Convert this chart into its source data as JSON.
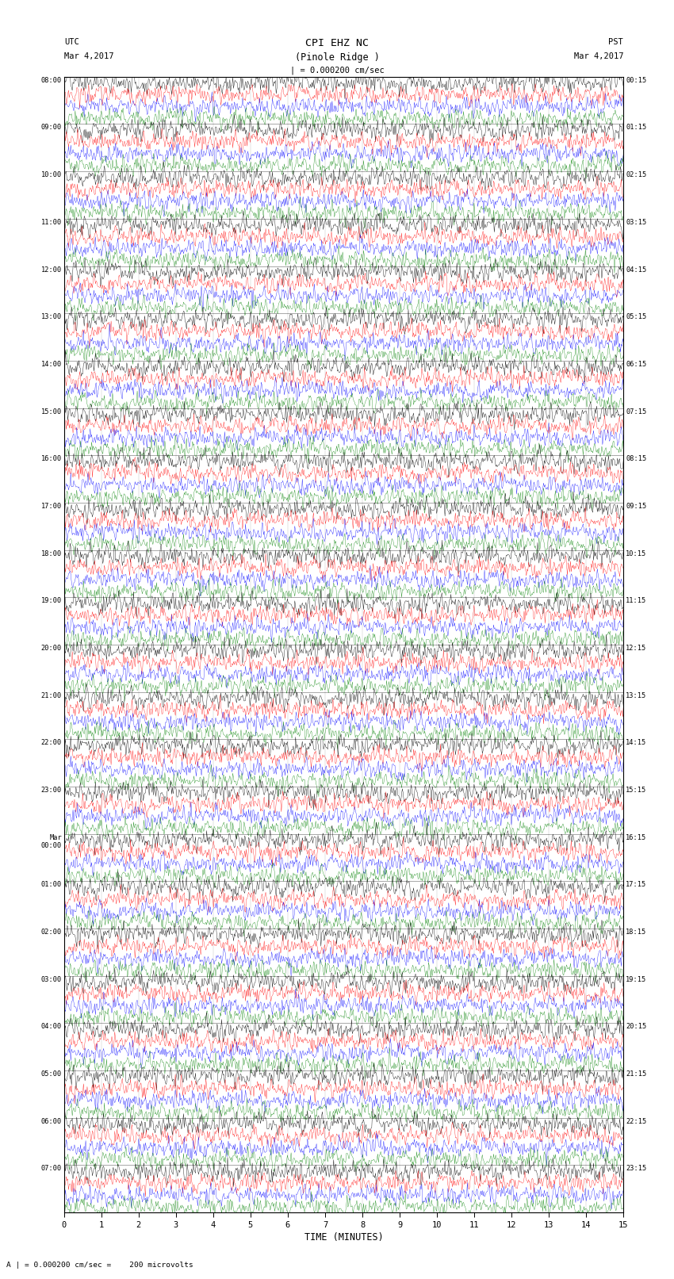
{
  "title_line1": "CPI EHZ NC",
  "title_line2": "(Pinole Ridge )",
  "scale_label": "| = 0.000200 cm/sec",
  "bottom_label": "A | = 0.000200 cm/sec =    200 microvolts",
  "utc_label": "UTC",
  "utc_date": "Mar 4,2017",
  "pst_label": "PST",
  "pst_date": "Mar 4,2017",
  "xlabel": "TIME (MINUTES)",
  "xticks": [
    0,
    1,
    2,
    3,
    4,
    5,
    6,
    7,
    8,
    9,
    10,
    11,
    12,
    13,
    14,
    15
  ],
  "trace_colors": [
    "black",
    "red",
    "blue",
    "green"
  ],
  "n_traces_per_row": 4,
  "background_color": "white",
  "rows_utc": [
    "08:00",
    "09:00",
    "10:00",
    "11:00",
    "12:00",
    "13:00",
    "14:00",
    "15:00",
    "16:00",
    "17:00",
    "18:00",
    "19:00",
    "20:00",
    "21:00",
    "22:00",
    "23:00",
    "Mar\n00:00",
    "01:00",
    "02:00",
    "03:00",
    "04:00",
    "05:00",
    "06:00",
    "07:00"
  ],
  "rows_pst": [
    "00:15",
    "01:15",
    "02:15",
    "03:15",
    "04:15",
    "05:15",
    "06:15",
    "07:15",
    "08:15",
    "09:15",
    "10:15",
    "11:15",
    "12:15",
    "13:15",
    "14:15",
    "15:15",
    "16:15",
    "17:15",
    "18:15",
    "19:15",
    "20:15",
    "21:15",
    "22:15",
    "23:15"
  ],
  "n_rows": 24,
  "minutes_per_row": 15,
  "fig_width": 8.5,
  "fig_height": 16.13,
  "dpi": 100
}
